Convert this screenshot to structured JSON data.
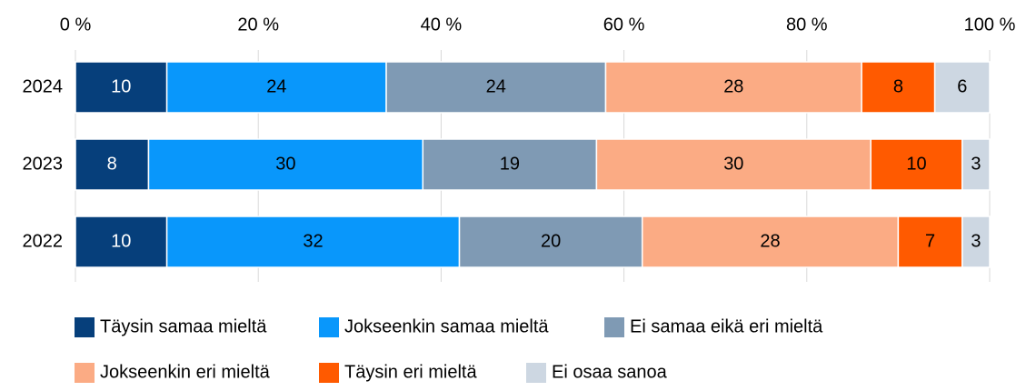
{
  "chart_data": {
    "type": "stacked-bar-horizontal",
    "categories": [
      "2024",
      "2023",
      "2022"
    ],
    "series": [
      {
        "name": "Täysin samaa mieltä",
        "color": "#063f7b",
        "values": [
          10,
          8,
          10
        ]
      },
      {
        "name": "Jokseenkin samaa mieltä",
        "color": "#0997fb",
        "values": [
          24,
          30,
          32
        ]
      },
      {
        "name": "Ei samaa eikä eri mieltä",
        "color": "#7f9ab4",
        "values": [
          24,
          19,
          20
        ]
      },
      {
        "name": "Jokseenkin eri mieltä",
        "color": "#fbab84",
        "values": [
          28,
          30,
          28
        ]
      },
      {
        "name": "Täysin eri mieltä",
        "color": "#ff5a00",
        "values": [
          8,
          10,
          7
        ]
      },
      {
        "name": "Ei osaa sanoa",
        "color": "#cdd7e2",
        "values": [
          6,
          3,
          3
        ]
      }
    ],
    "xlim": [
      0,
      100
    ],
    "xticks": [
      {
        "value": 0,
        "label": "0 %"
      },
      {
        "value": 20,
        "label": "20 %"
      },
      {
        "value": 40,
        "label": "40 %"
      },
      {
        "value": 60,
        "label": "60 %"
      },
      {
        "value": 80,
        "label": "80 %"
      },
      {
        "value": 100,
        "label": "100 %"
      }
    ],
    "grid": true
  }
}
